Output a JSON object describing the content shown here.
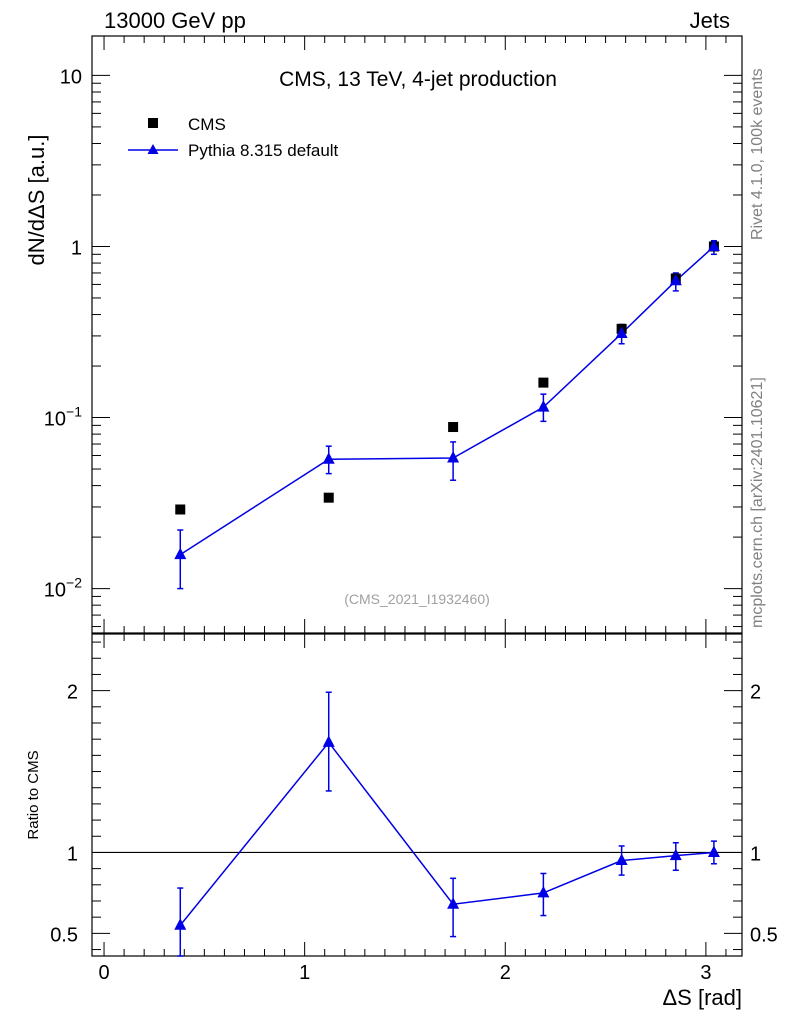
{
  "header": {
    "left": "13000 GeV pp",
    "right": "Jets"
  },
  "side_labels": {
    "rivet": "Rivet 4.1.0,  100k events",
    "mcplots": "mcplots.cern.ch [arXiv:2401.10621]"
  },
  "colors": {
    "data": "#000000",
    "mc": "#0000e6",
    "axis": "#000000",
    "watermark": "#a0a0a0",
    "side_text": "#808080"
  },
  "chart_data": [
    {
      "type": "scatter",
      "title": "CMS, 13 TeV, 4-jet production",
      "analysis_tag": "(CMS_2021_I1932460)",
      "ylabel": "dN/dΔS [a.u.]",
      "yscale": "log",
      "ylim": [
        0.0055,
        17
      ],
      "xlim": [
        -0.06,
        3.18
      ],
      "ytick_labels": [
        {
          "value": 0.01,
          "base": "10",
          "exp": "−2"
        },
        {
          "value": 0.1,
          "base": "10",
          "exp": "−1"
        },
        {
          "value": 1,
          "base": "1",
          "exp": ""
        },
        {
          "value": 10,
          "base": "10",
          "exp": ""
        }
      ],
      "legend": [
        {
          "name": "CMS",
          "marker": "square"
        },
        {
          "name": "Pythia 8.315 default",
          "marker": "triangle-line"
        }
      ],
      "series": [
        {
          "name": "CMS",
          "x": [
            0.38,
            1.12,
            1.74,
            2.19,
            2.58,
            2.85,
            3.04
          ],
          "y": [
            0.029,
            0.034,
            0.088,
            0.16,
            0.33,
            0.65,
            1.0
          ],
          "yerr": [
            0.0,
            0.0,
            0.0,
            0.0,
            0.015,
            0.04,
            0.05
          ]
        },
        {
          "name": "Pythia 8.315 default",
          "x": [
            0.38,
            1.12,
            1.74,
            2.19,
            2.58,
            2.85,
            3.04
          ],
          "y": [
            0.0158,
            0.057,
            0.058,
            0.115,
            0.31,
            0.63,
            1.0
          ],
          "ylow": [
            0.01,
            0.047,
            0.043,
            0.095,
            0.27,
            0.55,
            0.9
          ],
          "yhigh": [
            0.022,
            0.068,
            0.072,
            0.137,
            0.35,
            0.7,
            1.08
          ]
        }
      ]
    },
    {
      "type": "line",
      "ylabel": "Ratio to CMS",
      "xlabel": "ΔS [rad]",
      "ylim": [
        0.36,
        2.35
      ],
      "xlim": [
        -0.06,
        3.18
      ],
      "reference_line": 1.0,
      "xtick_labels": [
        {
          "value": 0,
          "label": "0"
        },
        {
          "value": 1,
          "label": "1"
        },
        {
          "value": 2,
          "label": "2"
        },
        {
          "value": 3,
          "label": "3"
        }
      ],
      "ytick_labels": [
        {
          "value": 0.5,
          "label": "0.5"
        },
        {
          "value": 1,
          "label": "1"
        },
        {
          "value": 2,
          "label": "2"
        }
      ],
      "series": [
        {
          "name": "Pythia 8.315 default / CMS",
          "x": [
            0.38,
            1.12,
            1.74,
            2.19,
            2.58,
            2.85,
            3.04
          ],
          "y": [
            0.55,
            1.68,
            0.68,
            0.75,
            0.95,
            0.98,
            1.0
          ],
          "ylow": [
            0.36,
            1.38,
            0.48,
            0.61,
            0.86,
            0.89,
            0.93
          ],
          "yhigh": [
            0.78,
            1.99,
            0.84,
            0.87,
            1.04,
            1.06,
            1.07
          ]
        }
      ]
    }
  ]
}
